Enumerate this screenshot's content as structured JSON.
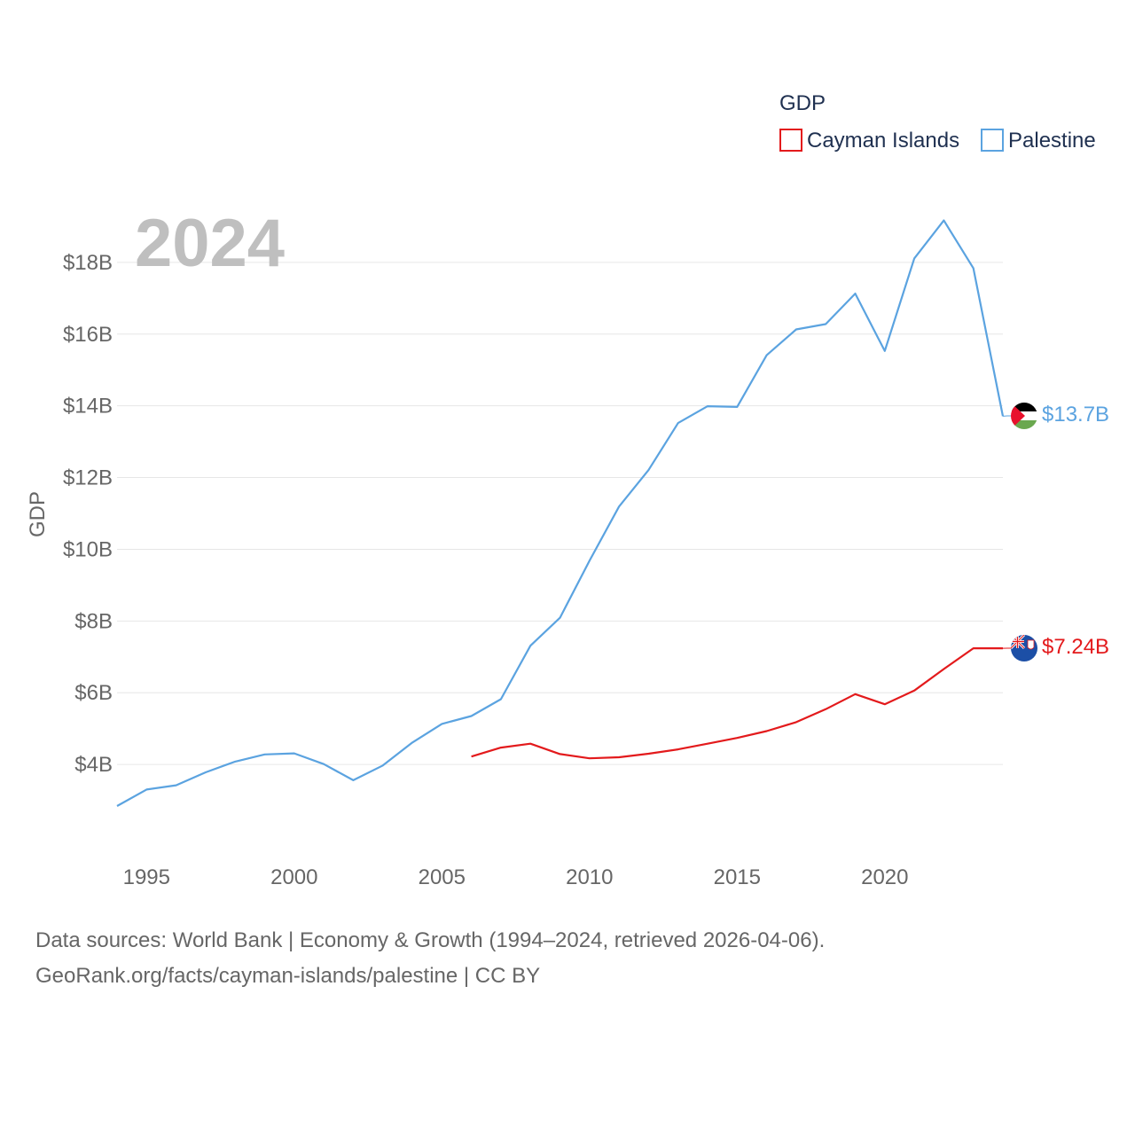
{
  "chart_data": {
    "type": "line",
    "title": "",
    "legend_title": "GDP",
    "ylabel": "GDP",
    "xlabel": "",
    "year_label": "2024",
    "xlim": [
      1994,
      2024
    ],
    "ylim": [
      2000000000,
      20000000000
    ],
    "x_ticks": [
      1995,
      2000,
      2005,
      2010,
      2015,
      2020
    ],
    "y_ticks": [
      {
        "value": 4000000000,
        "label": "$4B"
      },
      {
        "value": 6000000000,
        "label": "$6B"
      },
      {
        "value": 8000000000,
        "label": "$8B"
      },
      {
        "value": 10000000000,
        "label": "$10B"
      },
      {
        "value": 12000000000,
        "label": "$12B"
      },
      {
        "value": 14000000000,
        "label": "$14B"
      },
      {
        "value": 16000000000,
        "label": "$16B"
      },
      {
        "value": 18000000000,
        "label": "$18B"
      }
    ],
    "series": [
      {
        "name": "Cayman Islands",
        "color": "#e31a1c",
        "end_label": "$7.24B",
        "x": [
          2006,
          2007,
          2008,
          2009,
          2010,
          2011,
          2012,
          2013,
          2014,
          2015,
          2016,
          2017,
          2018,
          2019,
          2020,
          2021,
          2022,
          2023,
          2024
        ],
        "values": [
          4220000000,
          4470000000,
          4580000000,
          4290000000,
          4170000000,
          4200000000,
          4300000000,
          4420000000,
          4580000000,
          4740000000,
          4930000000,
          5180000000,
          5540000000,
          5960000000,
          5680000000,
          6060000000,
          6660000000,
          7240000000,
          7240000000
        ]
      },
      {
        "name": "Palestine",
        "color": "#5ba3e0",
        "end_label": "$13.7B",
        "x": [
          1994,
          1995,
          1996,
          1997,
          1998,
          1999,
          2000,
          2001,
          2002,
          2003,
          2004,
          2005,
          2006,
          2007,
          2008,
          2009,
          2010,
          2011,
          2012,
          2013,
          2014,
          2015,
          2016,
          2017,
          2018,
          2019,
          2020,
          2021,
          2022,
          2023,
          2024
        ],
        "values": [
          2840000000,
          3300000000,
          3420000000,
          3780000000,
          4080000000,
          4280000000,
          4310000000,
          4010000000,
          3560000000,
          3970000000,
          4610000000,
          5130000000,
          5350000000,
          5820000000,
          7310000000,
          8090000000,
          9680000000,
          11190000000,
          12210000000,
          13520000000,
          13990000000,
          13970000000,
          15410000000,
          16130000000,
          16280000000,
          17130000000,
          15530000000,
          18110000000,
          19170000000,
          17840000000,
          13710000000
        ]
      }
    ],
    "flags": [
      "palestine-flag-icon",
      "cayman-islands-flag-icon"
    ],
    "source_lines": [
      "Data sources: World Bank | Economy & Growth (1994–2024, retrieved 2026-04-06).",
      "GeoRank.org/facts/cayman-islands/palestine | CC BY"
    ]
  }
}
